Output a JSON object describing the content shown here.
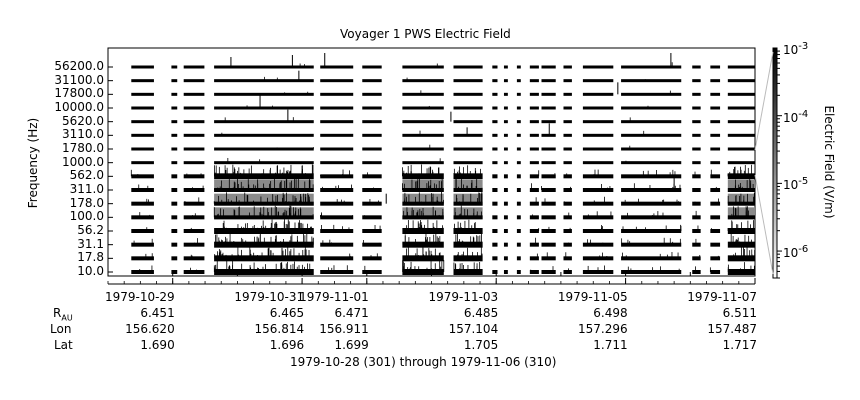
{
  "chart_data": {
    "type": "heatmap",
    "title": "Voyager 1 PWS Electric Field",
    "ylabel": "Frequency (Hz)",
    "colorbar_label": "Electric Field (V/m)",
    "y_ticks": [
      "56200.0",
      "31100.0",
      "17800.0",
      "10000.0",
      "5620.0",
      "3110.0",
      "1780.0",
      "1000.0",
      "562.0",
      "311.0",
      "178.0",
      "100.0",
      "56.2",
      "31.1",
      "17.8",
      "10.0"
    ],
    "colorbar_ticks": [
      {
        "base": "10",
        "exp": "-3"
      },
      {
        "base": "10",
        "exp": "-4"
      },
      {
        "base": "10",
        "exp": "-5"
      },
      {
        "base": "10",
        "exp": "-6"
      }
    ],
    "colorbar_range": [
      4e-07,
      0.001
    ],
    "x_range": [
      "1979-10-28",
      "1979-11-07"
    ],
    "x_ticks": [
      "1979-10-29",
      "1979-10-31",
      "1979-11-01",
      "1979-11-03",
      "1979-11-05",
      "1979-11-07"
    ],
    "ephemeris": {
      "labels": {
        "r": "R",
        "r_sub": "AU",
        "lon": "Lon",
        "lat": "Lat"
      },
      "r": [
        "6.451",
        "6.465",
        "6.471",
        "6.485",
        "6.498",
        "6.511"
      ],
      "lon": [
        "156.620",
        "156.814",
        "156.911",
        "157.104",
        "157.296",
        "157.487"
      ],
      "lat": [
        "1.690",
        "1.696",
        "1.699",
        "1.705",
        "1.711",
        "1.717"
      ]
    },
    "date_range_label": "1979-10-28 (301) through 1979-11-06 (310)",
    "data_coverage_days": [
      [
        0.36,
        0.71
      ],
      [
        0.98,
        1.07
      ],
      [
        1.17,
        1.49
      ],
      [
        1.64,
        3.18
      ],
      [
        3.28,
        3.79
      ],
      [
        3.93,
        4.23
      ],
      [
        4.55,
        5.19
      ],
      [
        5.34,
        5.79
      ],
      [
        5.94,
        6.02
      ],
      [
        6.12,
        6.18
      ],
      [
        6.32,
        6.38
      ],
      [
        6.52,
        6.66
      ],
      [
        6.7,
        6.92
      ],
      [
        7.04,
        7.17
      ],
      [
        7.34,
        7.81
      ],
      [
        7.93,
        8.86
      ],
      [
        9.03,
        9.16
      ],
      [
        9.31,
        9.46
      ],
      [
        9.58,
        10.0
      ]
    ],
    "strong_activity_days": [
      [
        1.67,
        3.13
      ],
      [
        4.57,
        5.19
      ],
      [
        5.35,
        5.8
      ],
      [
        9.59,
        9.98
      ]
    ]
  }
}
